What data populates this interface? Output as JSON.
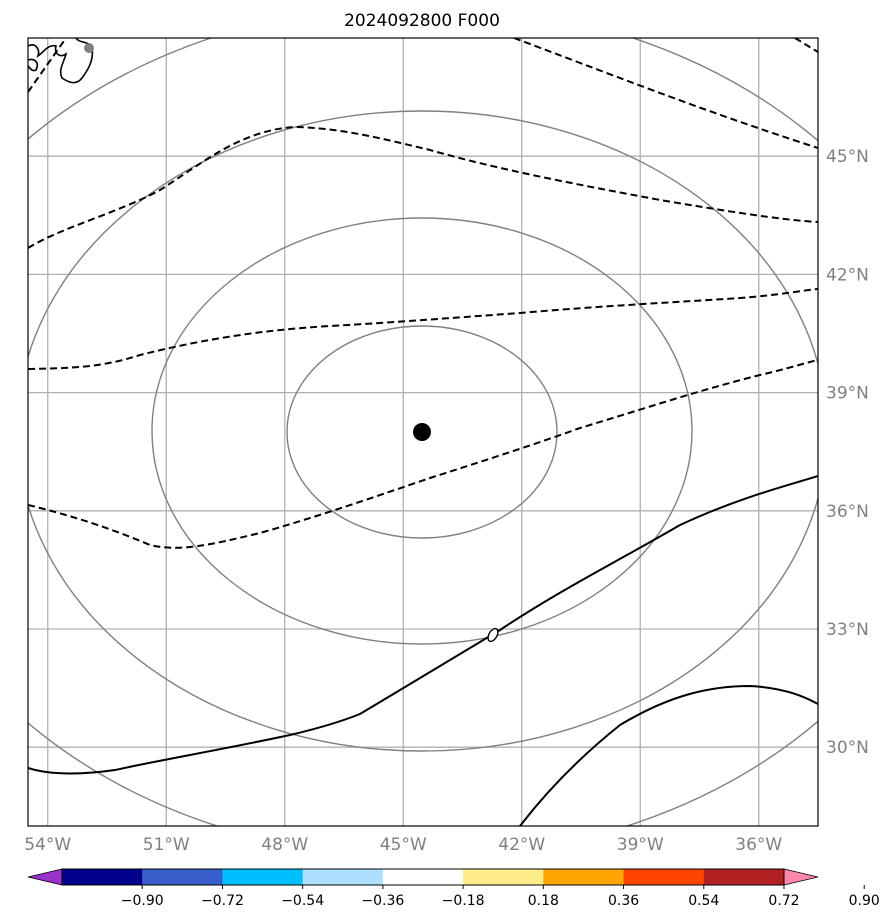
{
  "title": "2024092800 F000",
  "map": {
    "lon_range": [
      -54.5,
      -34.5
    ],
    "lat_range": [
      28,
      48
    ],
    "lon_ticks": [
      -54,
      -51,
      -48,
      -45,
      -42,
      -39,
      -36
    ],
    "lon_tick_labels": [
      "54°W",
      "51°W",
      "48°W",
      "45°W",
      "42°W",
      "39°W",
      "36°W"
    ],
    "lat_ticks": [
      30,
      33,
      36,
      39,
      42,
      45
    ],
    "lat_tick_labels": [
      "30°N",
      "33°N",
      "36°N",
      "39°N",
      "42°N",
      "45°N"
    ],
    "center": {
      "lon": -44.5,
      "lat": 38.0
    },
    "grid": true,
    "range_ring_color": "#808080",
    "gridline_color": "#b0b0b0",
    "contour_color": "#000000",
    "zero_contour_label": "0"
  },
  "colorbar": {
    "ticks": [
      "-0.90",
      "-0.72",
      "-0.54",
      "-0.36",
      "-0.18",
      "0.18",
      "0.36",
      "0.54",
      "0.72",
      "0.90"
    ],
    "colors": [
      "#9932CC",
      "#00008B",
      "#3A5FCD",
      "#00BFFF",
      "#ADDFFF",
      "#FFFFFF",
      "#FFEC8B",
      "#FFA500",
      "#FF4500",
      "#B22222",
      "#FF88AA"
    ],
    "extend": "both",
    "placement": "bottom"
  }
}
